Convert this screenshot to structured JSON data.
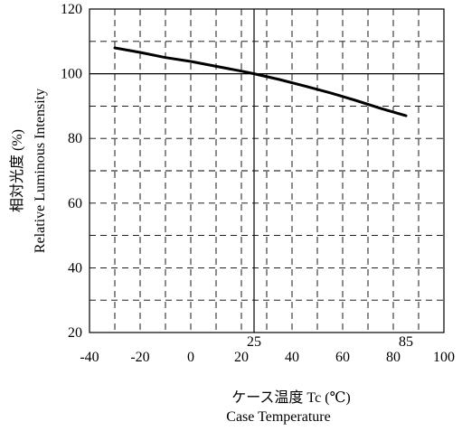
{
  "chart_data": {
    "type": "line",
    "title": "",
    "xlabel": "ケース温度 Tc (℃)",
    "xlabel_en": "Case Temperature",
    "ylabel": "相対光度 (%)",
    "ylabel_en": "Relative Luminous Intensity",
    "xlim": [
      -40,
      100
    ],
    "ylim": [
      20,
      120
    ],
    "x_ticks": [
      -40,
      -20,
      0,
      20,
      40,
      60,
      80,
      100
    ],
    "y_ticks": [
      20,
      40,
      60,
      80,
      100,
      120
    ],
    "x_annotations": [
      25,
      85
    ],
    "reference_lines": {
      "x": 25,
      "y": 100
    },
    "grid": "dashed",
    "legend": "none",
    "series": [
      {
        "x": [
          -30,
          -20,
          -10,
          0,
          10,
          20,
          25,
          35,
          45,
          55,
          65,
          75,
          85
        ],
        "y": [
          108,
          106.6,
          105,
          103.8,
          102.3,
          100.8,
          100,
          98.2,
          96.2,
          94.1,
          91.8,
          89.3,
          87
        ]
      }
    ],
    "colors": {
      "line": "#000000",
      "grid": "#000000",
      "frame": "#000000"
    }
  }
}
